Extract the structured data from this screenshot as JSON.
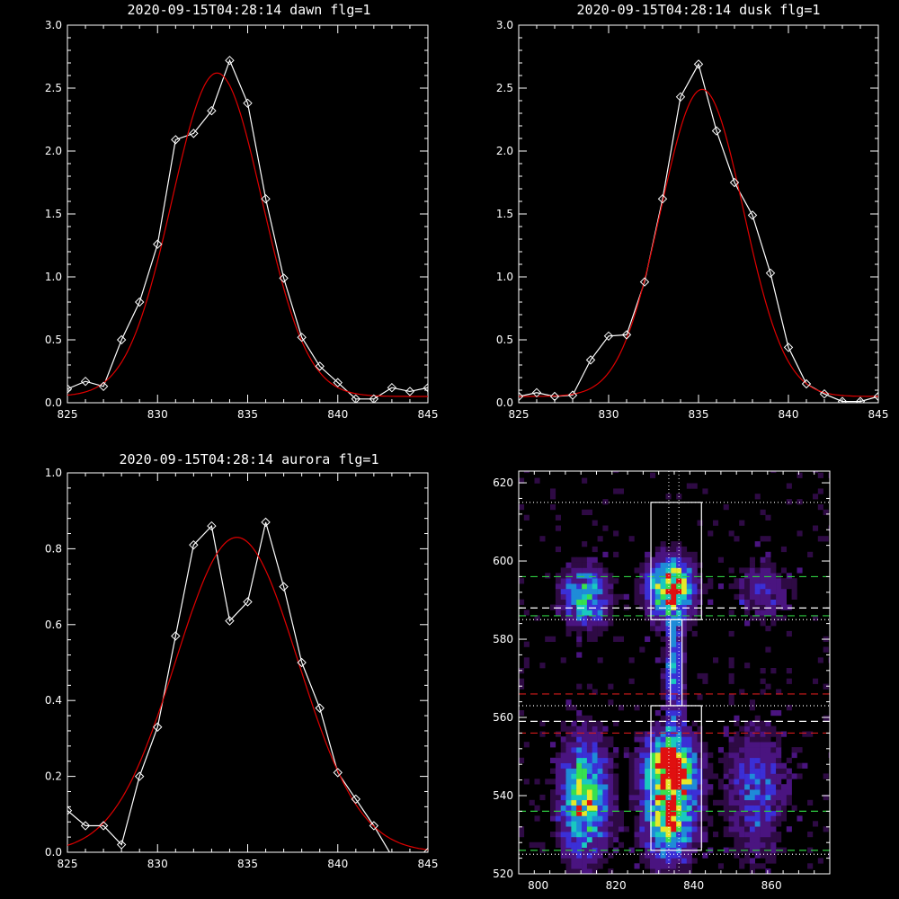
{
  "chart_data": [
    {
      "id": "dawn",
      "type": "line",
      "title": "2020-09-15T04:28:14 dawn flg=1",
      "xlim": [
        825,
        845
      ],
      "ylim": [
        0,
        3.0
      ],
      "xticks": [
        825,
        830,
        835,
        840,
        845
      ],
      "yticks": [
        0.0,
        0.5,
        1.0,
        1.5,
        2.0,
        2.5,
        3.0
      ],
      "series": [
        {
          "role": "data",
          "color": "#ffffff",
          "marker": "diamond",
          "x": [
            825,
            826,
            827,
            828,
            829,
            830,
            831,
            832,
            833,
            834,
            835,
            836,
            837,
            838,
            839,
            840,
            841,
            842,
            843,
            844,
            845
          ],
          "y": [
            0.11,
            0.17,
            0.13,
            0.5,
            0.8,
            1.26,
            2.09,
            2.14,
            2.32,
            2.72,
            2.38,
            1.62,
            0.99,
            0.52,
            0.29,
            0.16,
            0.03,
            0.03,
            0.12,
            0.09,
            0.12
          ]
        },
        {
          "role": "fit",
          "color": "#e00000",
          "gauss": {
            "amp": 2.57,
            "center": 833.3,
            "sigma": 2.5,
            "offset": 0.05
          }
        }
      ]
    },
    {
      "id": "dusk",
      "type": "line",
      "title": "2020-09-15T04:28:14 dusk flg=1",
      "xlim": [
        825,
        845
      ],
      "ylim": [
        0,
        3.0
      ],
      "xticks": [
        825,
        830,
        835,
        840,
        845
      ],
      "yticks": [
        0.0,
        0.5,
        1.0,
        1.5,
        2.0,
        2.5,
        3.0
      ],
      "series": [
        {
          "role": "data",
          "color": "#ffffff",
          "marker": "diamond",
          "x": [
            825,
            826,
            827,
            828,
            829,
            830,
            831,
            832,
            833,
            834,
            835,
            836,
            837,
            838,
            839,
            840,
            841,
            842,
            843,
            844,
            845
          ],
          "y": [
            0.05,
            0.08,
            0.05,
            0.06,
            0.34,
            0.53,
            0.54,
            0.96,
            1.62,
            2.43,
            2.69,
            2.16,
            1.75,
            1.49,
            1.03,
            0.44,
            0.15,
            0.07,
            0.01,
            0.01,
            0.05
          ]
        },
        {
          "role": "fit",
          "color": "#e00000",
          "gauss": {
            "amp": 2.44,
            "center": 835.2,
            "sigma": 2.3,
            "offset": 0.05
          }
        }
      ]
    },
    {
      "id": "aurora",
      "type": "line",
      "title": "2020-09-15T04:28:14 aurora flg=1",
      "xlim": [
        825,
        845
      ],
      "ylim": [
        0,
        1.0
      ],
      "xticks": [
        825,
        830,
        835,
        840,
        845
      ],
      "yticks": [
        0.0,
        0.2,
        0.4,
        0.6,
        0.8,
        1.0
      ],
      "series": [
        {
          "role": "data",
          "color": "#ffffff",
          "marker": "diamond",
          "x": [
            825,
            826,
            827,
            828,
            829,
            830,
            831,
            832,
            833,
            834,
            835,
            836,
            837,
            838,
            839,
            840,
            841,
            842,
            843,
            844,
            845
          ],
          "y": [
            0.11,
            0.07,
            0.07,
            0.02,
            0.2,
            0.33,
            0.57,
            0.81,
            0.86,
            0.61,
            0.66,
            0.87,
            0.7,
            0.5,
            0.38,
            0.21,
            0.14,
            0.07,
            -0.01,
            -0.01,
            0.0
          ]
        },
        {
          "role": "fit",
          "color": "#e00000",
          "gauss": {
            "amp": 0.83,
            "center": 834.4,
            "sigma": 3.4,
            "offset": 0.0
          }
        }
      ]
    },
    {
      "id": "image",
      "type": "heatmap",
      "title": "",
      "xlim": [
        795,
        875
      ],
      "ylim": [
        520,
        623
      ],
      "xticks": [
        800,
        820,
        840,
        860
      ],
      "yticks": [
        520,
        540,
        560,
        580,
        600,
        620
      ],
      "colormap": [
        "#2e0a44",
        "#4a1480",
        "#3b2fd6",
        "#1f8bd8",
        "#19c9c0",
        "#37e04f",
        "#e6e82a",
        "#e01010"
      ],
      "bands": [
        {
          "x": 834,
          "y": 538,
          "sx": 4.2,
          "sy": 9,
          "amp": 1.0
        },
        {
          "x": 834,
          "y": 549,
          "sx": 4.2,
          "sy": 5,
          "amp": 0.6
        },
        {
          "x": 834,
          "y": 593,
          "sx": 4.0,
          "sy": 5,
          "amp": 0.95
        },
        {
          "x": 835,
          "y": 572,
          "sx": 1.6,
          "sy": 10,
          "amp": 0.45
        },
        {
          "x": 812,
          "y": 539,
          "sx": 4.0,
          "sy": 10,
          "amp": 0.75
        },
        {
          "x": 812,
          "y": 591,
          "sx": 4.0,
          "sy": 5,
          "amp": 0.6
        },
        {
          "x": 856,
          "y": 541,
          "sx": 5.0,
          "sy": 11,
          "amp": 0.32
        },
        {
          "x": 858,
          "y": 592,
          "sx": 5.0,
          "sy": 5,
          "amp": 0.22
        }
      ],
      "rectangles": [
        {
          "x0": 829,
          "x1": 842,
          "y0": 585,
          "y1": 615
        },
        {
          "x0": 829,
          "x1": 842,
          "y0": 526,
          "y1": 563
        },
        {
          "x0": 834,
          "x1": 837,
          "y0": 563,
          "y1": 585
        }
      ],
      "hlines": [
        {
          "y": 615,
          "color": "#ffffff",
          "style": "dotted"
        },
        {
          "y": 596,
          "color": "#2ecc40",
          "style": "dashed"
        },
        {
          "y": 588,
          "color": "#ffffff",
          "style": "dashed"
        },
        {
          "y": 586,
          "color": "#2ecc40",
          "style": "dashed"
        },
        {
          "y": 585,
          "color": "#ffffff",
          "style": "dotted"
        },
        {
          "y": 566,
          "color": "#d41a1a",
          "style": "dashed"
        },
        {
          "y": 563,
          "color": "#ffffff",
          "style": "dotted"
        },
        {
          "y": 559,
          "color": "#ffffff",
          "style": "dashed"
        },
        {
          "y": 556,
          "color": "#d41a1a",
          "style": "dashed"
        },
        {
          "y": 536,
          "color": "#2ecc40",
          "style": "dashed"
        },
        {
          "y": 526,
          "color": "#2ecc40",
          "style": "dashed"
        },
        {
          "y": 525,
          "color": "#ffffff",
          "style": "dotted"
        }
      ],
      "vlines": [
        {
          "x": 833.6,
          "color": "#ffffff",
          "style": "dotted"
        },
        {
          "x": 836.2,
          "color": "#ffffff",
          "style": "dotted"
        }
      ]
    }
  ]
}
